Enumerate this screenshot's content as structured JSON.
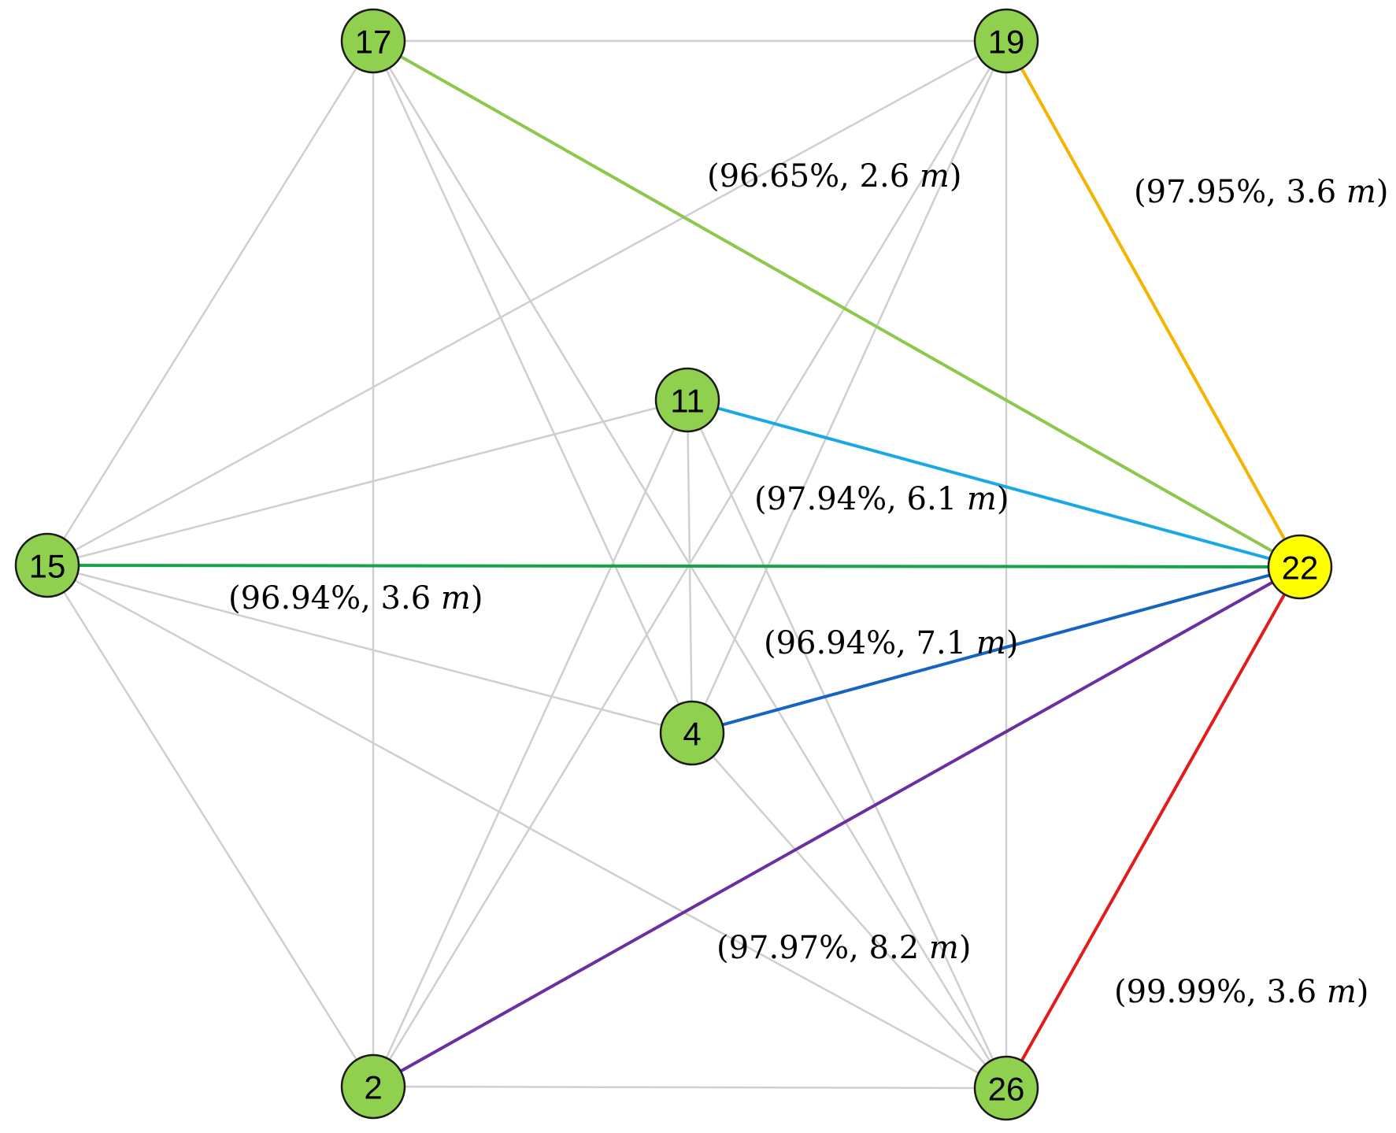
{
  "nodes": [
    {
      "id": "17",
      "label": "17",
      "color": "#8fd14f"
    },
    {
      "id": "19",
      "label": "19",
      "color": "#8fd14f"
    },
    {
      "id": "11",
      "label": "11",
      "color": "#8fd14f"
    },
    {
      "id": "15",
      "label": "15",
      "color": "#8fd14f"
    },
    {
      "id": "22",
      "label": "22",
      "color": "#ffff00"
    },
    {
      "id": "4",
      "label": "4",
      "color": "#8fd14f"
    },
    {
      "id": "2",
      "label": "2",
      "color": "#8fd14f"
    },
    {
      "id": "26",
      "label": "26",
      "color": "#8fd14f"
    }
  ],
  "background_edges": [
    [
      "17",
      "19"
    ],
    [
      "17",
      "15"
    ],
    [
      "17",
      "2"
    ],
    [
      "17",
      "4"
    ],
    [
      "17",
      "26"
    ],
    [
      "19",
      "15"
    ],
    [
      "19",
      "2"
    ],
    [
      "19",
      "4"
    ],
    [
      "19",
      "26"
    ],
    [
      "11",
      "15"
    ],
    [
      "11",
      "2"
    ],
    [
      "11",
      "4"
    ],
    [
      "11",
      "26"
    ],
    [
      "15",
      "4"
    ],
    [
      "15",
      "2"
    ],
    [
      "15",
      "26"
    ],
    [
      "2",
      "26"
    ],
    [
      "4",
      "26"
    ]
  ],
  "highlighted_edges": [
    {
      "from": "17",
      "to": "22",
      "color": "#8cc84b",
      "value": "(96.65%, 2.6 ",
      "unit": "m",
      "close": ")"
    },
    {
      "from": "19",
      "to": "22",
      "color": "#f5b400",
      "value": "(97.95%, 3.6 ",
      "unit": "m",
      "close": ")"
    },
    {
      "from": "11",
      "to": "22",
      "color": "#1aa7e6",
      "value": "(97.94%, 6.1 ",
      "unit": "m",
      "close": ")"
    },
    {
      "from": "15",
      "to": "22",
      "color": "#16a34a",
      "value": "(96.94%, 3.6 ",
      "unit": "m",
      "close": ")"
    },
    {
      "from": "4",
      "to": "22",
      "color": "#1565c0",
      "value": "(96.94%, 7.1 ",
      "unit": "m",
      "close": ")"
    },
    {
      "from": "2",
      "to": "22",
      "color": "#6b2fa0",
      "value": "(97.97%, 8.2 ",
      "unit": "m",
      "close": ")"
    },
    {
      "from": "26",
      "to": "22",
      "color": "#e41b1b",
      "value": "(99.99%, 3.6 ",
      "unit": "m",
      "close": ")"
    }
  ]
}
